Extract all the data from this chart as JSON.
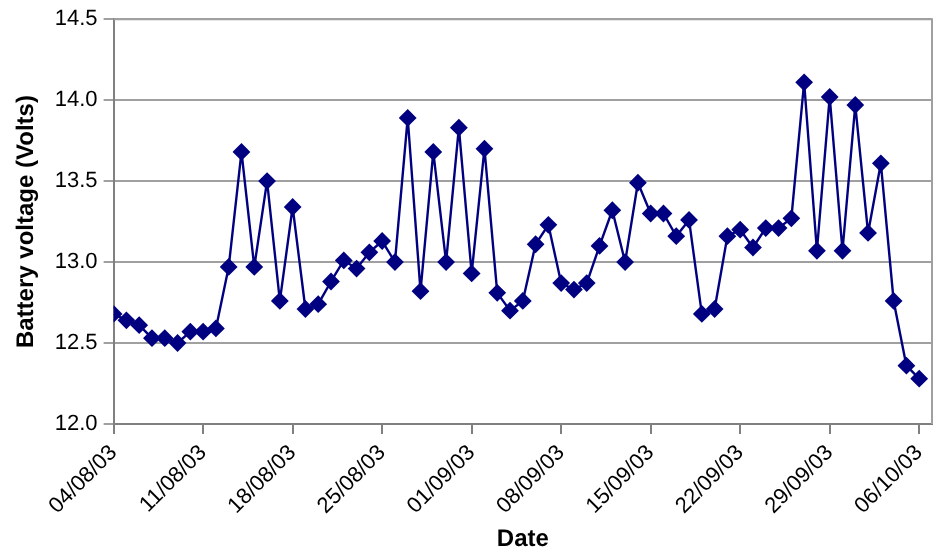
{
  "chart_data": {
    "type": "line",
    "xlabel": "Date",
    "ylabel": "Battery voltage (Volts)",
    "x": [
      "--08-04",
      "--08-05",
      "--08-06",
      "--08-07",
      "--08-08",
      "--08-09",
      "--08-10",
      "--08-11",
      "--08-12",
      "--08-13",
      "--08-14",
      "--08-15",
      "--08-16",
      "--08-17",
      "--08-18",
      "--08-19",
      "--08-20",
      "--08-21",
      "--08-22",
      "--08-23",
      "--08-24",
      "--08-25",
      "--08-26",
      "--08-27",
      "--08-28",
      "--08-29",
      "--08-30",
      "--08-31",
      "--09-01",
      "--09-02",
      "--09-03",
      "--09-04",
      "--09-05",
      "--09-06",
      "--09-07",
      "--09-08",
      "--09-09",
      "--09-10",
      "--09-11",
      "--09-12",
      "--09-13",
      "--09-14",
      "--09-15",
      "--09-16",
      "--09-17",
      "--09-18",
      "--09-19",
      "--09-20",
      "--09-21",
      "--09-22",
      "--09-23",
      "--09-24",
      "--09-25",
      "--09-26",
      "--09-27",
      "--09-28",
      "--09-29",
      "--09-30",
      "--10-01",
      "--10-02",
      "--10-03",
      "--10-04",
      "--10-05",
      "--10-06"
    ],
    "series": [
      {
        "color": "#000080",
        "values": [
          12.68,
          12.64,
          12.61,
          12.53,
          12.53,
          12.5,
          12.57,
          12.57,
          12.59,
          12.97,
          13.68,
          12.97,
          13.5,
          12.76,
          13.34,
          12.71,
          12.74,
          12.88,
          13.01,
          12.96,
          13.06,
          13.13,
          13.0,
          13.89,
          12.82,
          13.68,
          13.0,
          13.83,
          12.93,
          13.7,
          12.81,
          12.7,
          12.76,
          13.11,
          13.23,
          12.87,
          12.83,
          12.87,
          13.1,
          13.32,
          13.0,
          13.49,
          13.3,
          13.3,
          13.16,
          13.26,
          12.68,
          12.71,
          13.16,
          13.2,
          13.09,
          13.21,
          13.21,
          13.27,
          14.11,
          13.07,
          14.02,
          13.07,
          13.97,
          13.18,
          13.61,
          12.76,
          12.36,
          12.28
        ]
      }
    ],
    "xlim": [
      "--08-04",
      "--10-07"
    ],
    "xticks": [
      {
        "value": "--08-04",
        "label": "04/08/03"
      },
      {
        "value": "--08-11",
        "label": "11/08/03"
      },
      {
        "value": "--08-18",
        "label": "18/08/03"
      },
      {
        "value": "--08-25",
        "label": "25/08/03"
      },
      {
        "value": "--09-01",
        "label": "01/09/03"
      },
      {
        "value": "--09-08",
        "label": "08/09/03"
      },
      {
        "value": "--09-15",
        "label": "15/09/03"
      },
      {
        "value": "--09-22",
        "label": "22/09/03"
      },
      {
        "value": "--09-29",
        "label": "29/09/03"
      },
      {
        "value": "--10-06",
        "label": "06/10/03"
      }
    ],
    "ylim": [
      12,
      14.5
    ],
    "yticks": [
      {
        "value": 12,
        "label": "12.0"
      },
      {
        "value": 12.5,
        "label": "12.5"
      },
      {
        "value": 13,
        "label": "13.0"
      },
      {
        "value": 13.5,
        "label": "13.5"
      },
      {
        "value": 14,
        "label": "14.0"
      },
      {
        "value": 14.5,
        "label": "14.5"
      }
    ],
    "grid": "y",
    "marker": "diamond",
    "line_style": "solid",
    "legend": false
  }
}
